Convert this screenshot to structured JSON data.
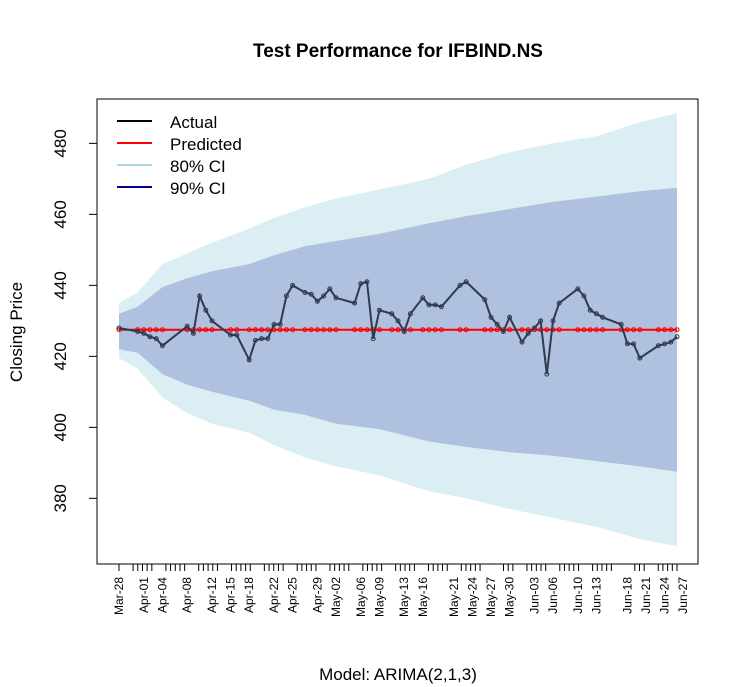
{
  "chart_data": {
    "type": "line",
    "title": "Test Performance for IFBIND.NS",
    "xlabel": "Model: ARIMA(2,1,3)",
    "ylabel": "Closing Price",
    "ylim": [
      361.5,
      492.5
    ],
    "yticks": [
      380,
      400,
      420,
      440,
      460,
      480
    ],
    "legend_position": "top-left",
    "x_tick_labels": [
      "Mar-28",
      "Apr-01",
      "Apr-04",
      "Apr-08",
      "Apr-12",
      "Apr-15",
      "Apr-18",
      "Apr-22",
      "Apr-25",
      "Apr-29",
      "May-02",
      "May-06",
      "May-09",
      "May-13",
      "May-16",
      "May-21",
      "May-24",
      "May-27",
      "May-30",
      "Jun-03",
      "Jun-06",
      "Jun-10",
      "Jun-13",
      "Jun-18",
      "Jun-21",
      "Jun-24",
      "Jun-27"
    ],
    "x_minor_positions": [
      0,
      3,
      4,
      5,
      6,
      7,
      10,
      11,
      12,
      13,
      14,
      17,
      18,
      19,
      20,
      21,
      24,
      25,
      26,
      27,
      28,
      31,
      32,
      33,
      34,
      35,
      38,
      39,
      40,
      41,
      42,
      45,
      46,
      47,
      48,
      49,
      52,
      53,
      54,
      55,
      56,
      59,
      60,
      61,
      62,
      63,
      66,
      67,
      68,
      69,
      70,
      73,
      74,
      75,
      76,
      77,
      82,
      83,
      84,
      87,
      88,
      89,
      90,
      91,
      94,
      95,
      96,
      97,
      98,
      101,
      102,
      103,
      104,
      105,
      110,
      111,
      112,
      115,
      116,
      117,
      118,
      119
    ],
    "x_label_positions": [
      0,
      4,
      7,
      11,
      15,
      18,
      21,
      25,
      28,
      32,
      35,
      39,
      42,
      46,
      49,
      54,
      57,
      60,
      63,
      67,
      70,
      74,
      77,
      82,
      85,
      88,
      91
    ],
    "legend": [
      {
        "label": "Actual",
        "color": "#000000"
      },
      {
        "label": "Predicted",
        "color": "#ff0000"
      },
      {
        "label": "80% CI",
        "color": "#add8e6"
      },
      {
        "label": "90% CI",
        "color": "#00008b"
      }
    ],
    "colors": {
      "actual": "#2e3a4f",
      "predicted": "#ff0000",
      "ci80_fill": "#daeef3",
      "ci90_fill": "#b0c1e0"
    },
    "series": [
      {
        "name": "Actual",
        "x": [
          0,
          3,
          4,
          5,
          6,
          7,
          11,
          12,
          13,
          14,
          15,
          18,
          19,
          21,
          22,
          23,
          24,
          25,
          26,
          27,
          28,
          30,
          31,
          32,
          33,
          34,
          35,
          38,
          39,
          40,
          41,
          42,
          44,
          45,
          46,
          47,
          49,
          50,
          51,
          52,
          55,
          56,
          59,
          60,
          61,
          62,
          63,
          65,
          66,
          67,
          68,
          69,
          70,
          71,
          74,
          75,
          76,
          77,
          78,
          81,
          82,
          83,
          84,
          87,
          88,
          89,
          90
        ],
        "y": [
          428,
          427,
          426.5,
          425.5,
          425,
          423,
          428.5,
          426.5,
          437,
          433,
          430,
          426,
          426,
          419,
          424.5,
          425,
          425,
          429,
          429,
          437,
          440,
          438,
          437.5,
          435.5,
          437,
          439,
          436.5,
          435,
          440.5,
          441,
          425,
          433,
          432,
          430,
          427,
          432,
          436.5,
          434.5,
          434.5,
          434,
          440,
          441,
          436,
          431,
          429,
          427,
          431,
          424,
          426.5,
          428,
          430,
          415,
          430,
          435,
          439,
          437,
          433,
          432,
          431,
          429,
          423.5,
          423.5,
          419.5,
          423,
          423.5,
          424,
          425.5
        ]
      },
      {
        "name": "Predicted",
        "x": [
          0,
          3,
          4,
          5,
          6,
          7,
          11,
          12,
          13,
          14,
          15,
          18,
          19,
          21,
          22,
          23,
          24,
          25,
          26,
          27,
          28,
          30,
          31,
          32,
          33,
          34,
          35,
          38,
          39,
          40,
          41,
          42,
          44,
          45,
          46,
          47,
          49,
          50,
          51,
          52,
          55,
          56,
          59,
          60,
          61,
          62,
          63,
          65,
          66,
          67,
          68,
          69,
          70,
          71,
          74,
          75,
          76,
          77,
          78,
          81,
          82,
          83,
          84,
          87,
          88,
          89,
          90
        ],
        "y": [
          427.5,
          427.5,
          427.5,
          427.5,
          427.5,
          427.5,
          427.5,
          427.5,
          427.5,
          427.5,
          427.5,
          427.5,
          427.5,
          427.5,
          427.5,
          427.5,
          427.5,
          427.5,
          427.5,
          427.5,
          427.5,
          427.5,
          427.5,
          427.5,
          427.5,
          427.5,
          427.5,
          427.5,
          427.5,
          427.5,
          427.5,
          427.5,
          427.5,
          427.5,
          427.5,
          427.5,
          427.5,
          427.5,
          427.5,
          427.5,
          427.5,
          427.5,
          427.5,
          427.5,
          427.5,
          427.5,
          427.5,
          427.5,
          427.5,
          427.5,
          427.5,
          427.5,
          427.5,
          427.5,
          427.5,
          427.5,
          427.5,
          427.5,
          427.5,
          427.5,
          427.5,
          427.5,
          427.5,
          427.5,
          427.5,
          427.5,
          427.5
        ]
      }
    ],
    "ci80": {
      "x": [
        0,
        3,
        7,
        11,
        15,
        21,
        25,
        30,
        35,
        42,
        50,
        56,
        63,
        70,
        77,
        84,
        90
      ],
      "upper": [
        435,
        438,
        446,
        449,
        452,
        456,
        459,
        462,
        464.5,
        467,
        470,
        474,
        477.5,
        480,
        482,
        486,
        488.5
      ],
      "lower": [
        419.5,
        416.5,
        408.5,
        404,
        401,
        398.5,
        395,
        391.5,
        389,
        386.5,
        382,
        380,
        377,
        374.5,
        372,
        368.5,
        366.5
      ]
    },
    "ci90": {
      "x": [
        0,
        3,
        7,
        11,
        15,
        21,
        25,
        30,
        35,
        42,
        50,
        56,
        63,
        70,
        77,
        84,
        90
      ],
      "upper": [
        432,
        434,
        439.5,
        442,
        444,
        446,
        448.5,
        451,
        452.5,
        454.5,
        457.5,
        459.5,
        461.5,
        463.5,
        465,
        466.5,
        467.5
      ],
      "lower": [
        422,
        421,
        415,
        412,
        410,
        407.5,
        405,
        403.5,
        401,
        399.5,
        396,
        394.5,
        393,
        392,
        390.5,
        389,
        387.5
      ]
    }
  }
}
